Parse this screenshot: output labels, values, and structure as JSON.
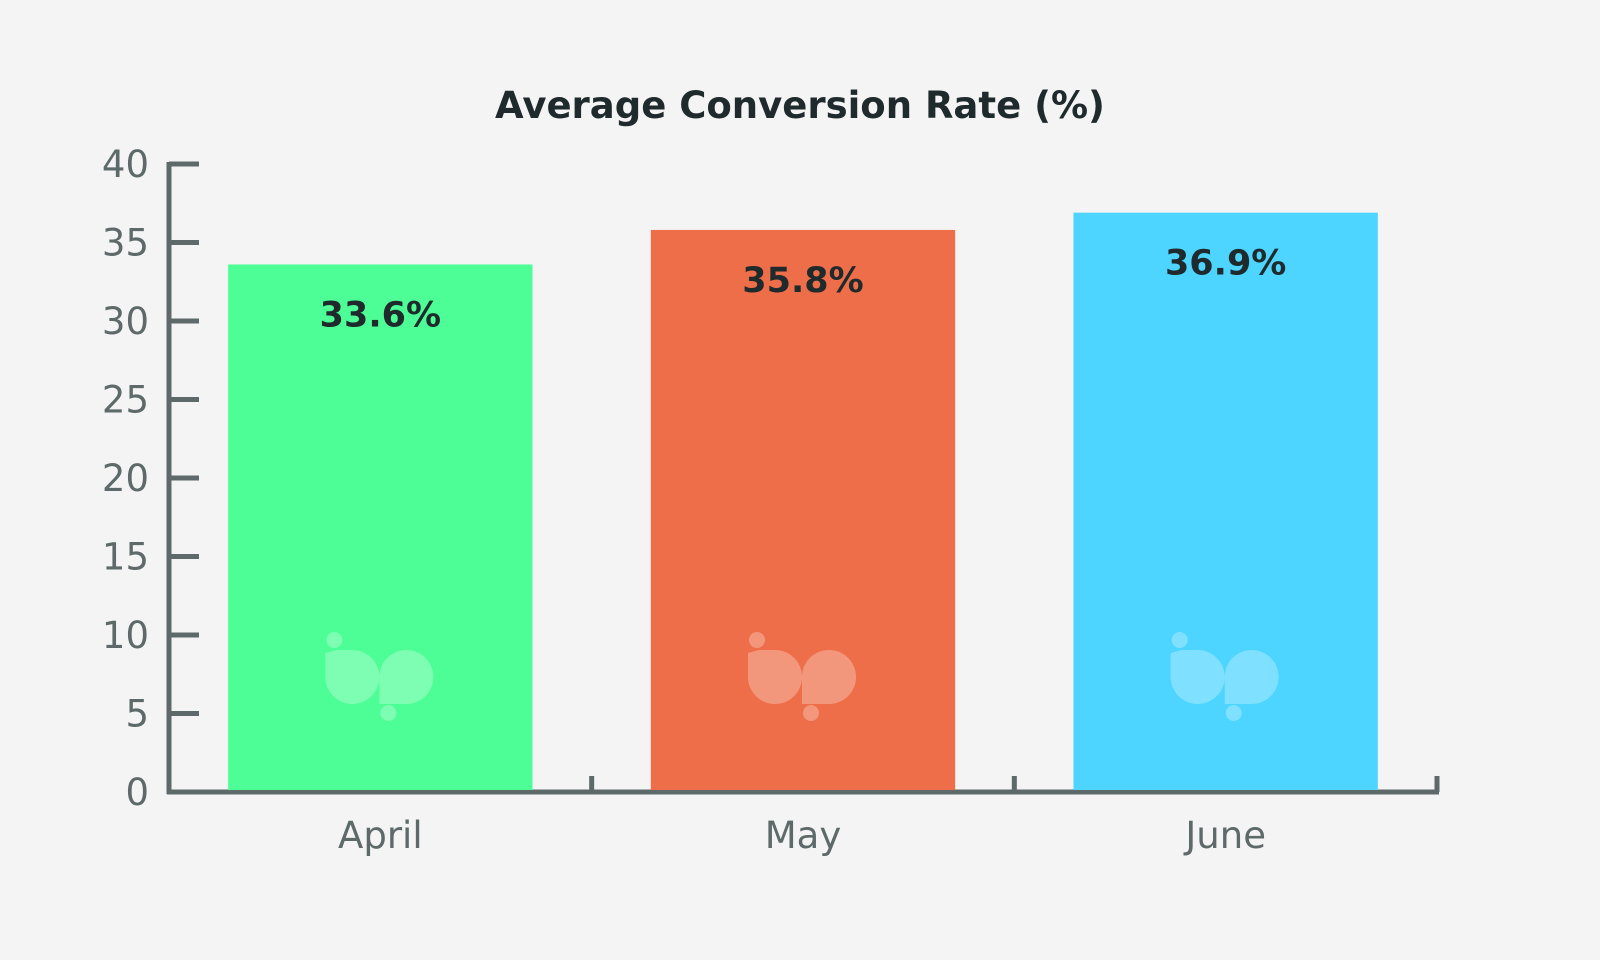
{
  "chart_data": {
    "type": "bar",
    "title": "Average Conversion Rate (%)",
    "xlabel": "",
    "ylabel": "",
    "categories": [
      "April",
      "May",
      "June"
    ],
    "values": [
      33.6,
      35.8,
      36.9
    ],
    "data_labels": [
      "33.6%",
      "35.8%",
      "36.9%"
    ],
    "colors": [
      "#4cfe95",
      "#ee6e4a",
      "#4dd4ff"
    ],
    "ylim": [
      0,
      40
    ],
    "yticks": [
      "0",
      "5",
      "10",
      "15",
      "20",
      "25",
      "30",
      "35",
      "40"
    ],
    "grid": false,
    "legend": "none",
    "watermark_icon": "bp-logo-icon"
  },
  "colors": {
    "background": "#f3f4f3",
    "axis": "#5d6a69"
  }
}
